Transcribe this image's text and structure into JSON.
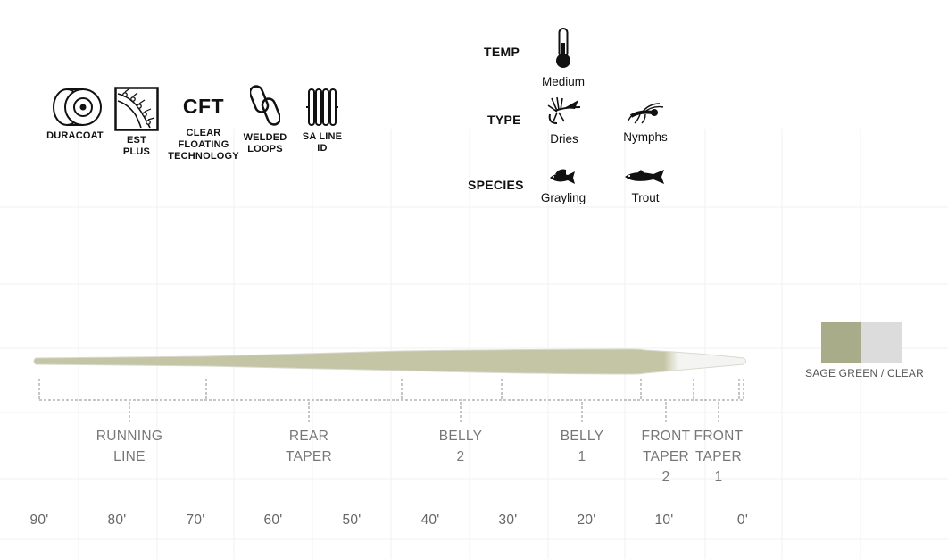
{
  "features": [
    {
      "id": "duracoat",
      "icon": "duracoat-icon",
      "label": "DURACOAT"
    },
    {
      "id": "est",
      "icon": "est-plus-icon",
      "label": "EST\nPLUS"
    },
    {
      "id": "cft",
      "icon_text": "CFT",
      "label": "CLEAR\nFLOATING\nTECHNOLOGY"
    },
    {
      "id": "welded",
      "icon": "welded-loops-icon",
      "label": "WELDED\nLOOPS"
    },
    {
      "id": "saline",
      "icon": "sa-line-id-icon",
      "label": "SA LINE\nID"
    }
  ],
  "specs": {
    "temp": {
      "heading": "TEMP",
      "items": [
        {
          "icon": "thermometer-icon",
          "label": "Medium"
        }
      ]
    },
    "type": {
      "heading": "TYPE",
      "items": [
        {
          "icon": "dry-fly-icon",
          "label": "Dries"
        },
        {
          "icon": "nymph-icon",
          "label": "Nymphs"
        }
      ]
    },
    "species": {
      "heading": "SPECIES",
      "items": [
        {
          "icon": "grayling-icon",
          "label": "Grayling"
        },
        {
          "icon": "trout-icon",
          "label": "Trout"
        }
      ]
    }
  },
  "line": {
    "segments": [
      {
        "label": "RUNNING\nLINE"
      },
      {
        "label": "REAR\nTAPER"
      },
      {
        "label": "BELLY\n2"
      },
      {
        "label": "BELLY\n1"
      },
      {
        "label": "FRONT\nTAPER\n2"
      },
      {
        "label": "FRONT\nTAPER\n1"
      }
    ],
    "distances": [
      "90'",
      "80'",
      "70'",
      "60'",
      "50'",
      "40'",
      "30'",
      "20'",
      "10'",
      "0'"
    ],
    "colors": {
      "main": "#c4c5a4",
      "tip": "#f4f4f2",
      "outline": "#d9d9cf"
    }
  },
  "swatch": {
    "label": "SAGE GREEN / CLEAR",
    "colors": [
      "#a9ac88",
      "#dcdcdd"
    ]
  }
}
